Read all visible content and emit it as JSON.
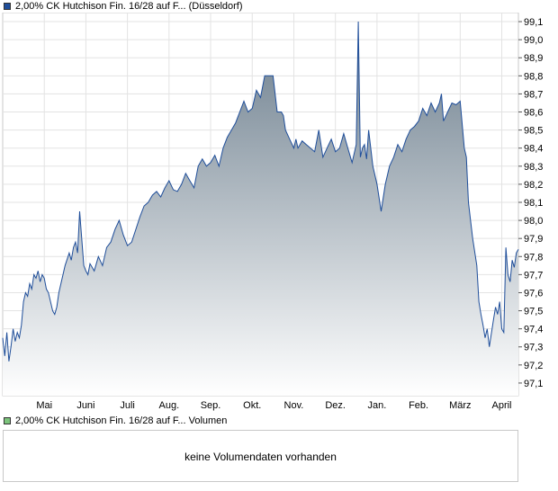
{
  "price_legend": {
    "label": "2,00% CK Hutchison Fin. 16/28 auf F... (Düsseldorf)",
    "color": "#1f4e9a"
  },
  "volume_legend": {
    "label": "2,00% CK Hutchison Fin. 16/28 auf F... Volumen",
    "color": "#7cc47c"
  },
  "volume_panel": {
    "message": "keine Volumendaten vorhanden"
  },
  "chart_data": {
    "type": "area",
    "xlabel": "",
    "ylabel": "",
    "ylim": [
      97.03,
      99.15
    ],
    "y_ticks": [
      99.1,
      99.0,
      98.9,
      98.8,
      98.7,
      98.6,
      98.5,
      98.4,
      98.3,
      98.2,
      98.1,
      98.0,
      97.9,
      97.8,
      97.7,
      97.6,
      97.5,
      97.4,
      97.3,
      97.2,
      97.1
    ],
    "y_tick_labels": [
      "99,1",
      "99,0",
      "98,9",
      "98,8",
      "98,7",
      "98,6",
      "98,5",
      "98,4",
      "98,3",
      "98,2",
      "98,1",
      "98,0",
      "97,9",
      "97,8",
      "97,7",
      "97,6",
      "97,5",
      "97,4",
      "97,3",
      "97,2",
      "97,1"
    ],
    "x_axis_labels": [
      "Mai",
      "Juni",
      "Juli",
      "Aug.",
      "Sep.",
      "Okt.",
      "Nov.",
      "Dez.",
      "Jan.",
      "Feb.",
      "März",
      "April"
    ],
    "x_label_months": [
      1,
      2,
      3,
      4,
      5,
      6,
      7,
      8,
      9,
      10,
      11,
      12
    ],
    "x_max": 12.4,
    "grid": true,
    "line_color": "#1f4e9a",
    "fill_top_color": "#6b7d8c",
    "fill_bottom_color": "#ffffff",
    "series": [
      {
        "x": [
          0.0,
          0.05,
          0.1,
          0.15,
          0.2,
          0.25,
          0.3,
          0.35,
          0.4,
          0.45,
          0.5,
          0.55,
          0.6,
          0.65,
          0.7,
          0.75,
          0.8,
          0.85,
          0.9,
          0.95,
          1.0,
          1.05,
          1.1,
          1.2,
          1.25,
          1.3,
          1.35,
          1.4,
          1.45,
          1.5,
          1.6,
          1.65,
          1.7,
          1.75,
          1.8,
          1.85,
          1.9,
          1.95,
          2.0,
          2.05,
          2.1,
          2.15,
          2.2,
          2.3,
          2.4,
          2.5,
          2.6,
          2.7,
          2.8,
          2.9,
          3.0,
          3.1,
          3.2,
          3.3,
          3.4,
          3.5,
          3.6,
          3.7,
          3.8,
          3.9,
          4.0,
          4.1,
          4.2,
          4.3,
          4.4,
          4.5,
          4.6,
          4.7,
          4.8,
          4.9,
          5.0,
          5.1,
          5.2,
          5.3,
          5.4,
          5.5,
          5.6,
          5.7,
          5.8,
          5.9,
          6.0,
          6.1,
          6.2,
          6.3,
          6.4,
          6.5,
          6.6,
          6.7,
          6.75,
          6.8,
          6.9,
          7.0,
          7.05,
          7.1,
          7.2,
          7.3,
          7.4,
          7.5,
          7.6,
          7.7,
          7.8,
          7.9,
          8.0,
          8.1,
          8.2,
          8.3,
          8.4,
          8.5,
          8.55,
          8.6,
          8.65,
          8.7,
          8.75,
          8.8,
          8.9,
          9.0,
          9.1,
          9.2,
          9.3,
          9.4,
          9.5,
          9.6,
          9.7,
          9.8,
          9.9,
          10.0,
          10.1,
          10.2,
          10.3,
          10.4,
          10.5,
          10.55,
          10.6,
          10.7,
          10.8,
          10.9,
          11.0,
          11.1,
          11.15,
          11.2,
          11.3,
          11.4,
          11.45,
          11.5,
          11.55,
          11.6,
          11.65,
          11.7,
          11.8,
          11.85,
          11.9,
          11.95,
          12.0,
          12.05,
          12.1,
          12.15,
          12.2,
          12.25,
          12.3,
          12.35,
          12.4
        ],
        "values": [
          97.35,
          97.25,
          97.38,
          97.22,
          97.3,
          97.4,
          97.33,
          97.38,
          97.35,
          97.42,
          97.55,
          97.6,
          97.58,
          97.65,
          97.62,
          97.7,
          97.68,
          97.72,
          97.66,
          97.7,
          97.68,
          97.62,
          97.6,
          97.5,
          97.48,
          97.52,
          97.6,
          97.65,
          97.7,
          97.75,
          97.82,
          97.78,
          97.85,
          97.88,
          97.82,
          98.05,
          97.9,
          97.75,
          97.72,
          97.7,
          97.76,
          97.74,
          97.72,
          97.8,
          97.75,
          97.85,
          97.88,
          97.95,
          98.0,
          97.92,
          97.86,
          97.88,
          97.95,
          98.02,
          98.08,
          98.1,
          98.14,
          98.16,
          98.13,
          98.18,
          98.22,
          98.17,
          98.16,
          98.2,
          98.26,
          98.22,
          98.18,
          98.3,
          98.34,
          98.3,
          98.32,
          98.36,
          98.3,
          98.4,
          98.46,
          98.5,
          98.54,
          98.6,
          98.66,
          98.6,
          98.62,
          98.72,
          98.68,
          98.8,
          98.8,
          98.8,
          98.6,
          98.6,
          98.58,
          98.5,
          98.45,
          98.4,
          98.45,
          98.4,
          98.44,
          98.42,
          98.4,
          98.38,
          98.5,
          98.35,
          98.4,
          98.45,
          98.38,
          98.4,
          98.48,
          98.4,
          98.32,
          98.42,
          99.1,
          98.35,
          98.4,
          98.42,
          98.34,
          98.5,
          98.3,
          98.2,
          98.05,
          98.2,
          98.3,
          98.35,
          98.42,
          98.38,
          98.45,
          98.5,
          98.52,
          98.55,
          98.62,
          98.58,
          98.65,
          98.6,
          98.65,
          98.7,
          98.55,
          98.6,
          98.65,
          98.64,
          98.66,
          98.4,
          98.35,
          98.1,
          97.9,
          97.75,
          97.55,
          97.48,
          97.42,
          97.35,
          97.4,
          97.3,
          97.45,
          97.52,
          97.48,
          97.55,
          97.4,
          97.38,
          97.85,
          97.7,
          97.66,
          97.78,
          97.74,
          97.82,
          97.84
        ]
      }
    ]
  }
}
